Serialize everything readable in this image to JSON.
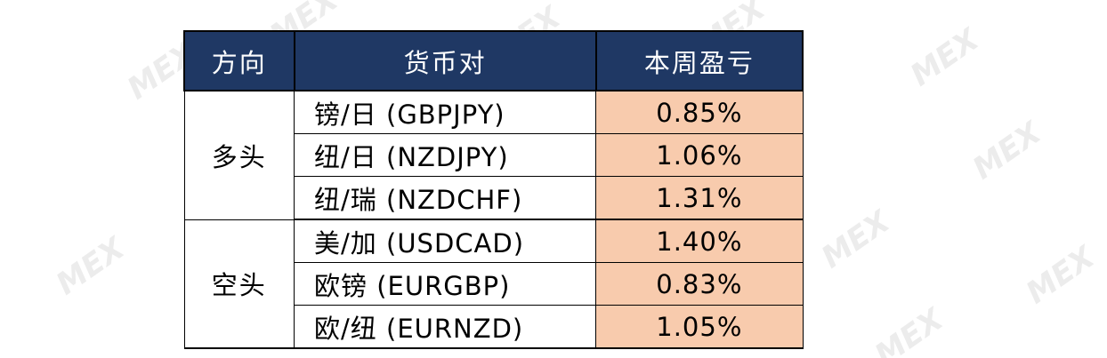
{
  "table": {
    "headers": [
      "方向",
      "货币对",
      "本周盈亏"
    ],
    "groups": [
      {
        "direction": "多头",
        "rows": [
          {
            "pair": "镑/日 (GBPJPY)",
            "pnl": "0.85%"
          },
          {
            "pair": "纽/日 (NZDJPY)",
            "pnl": "1.06%"
          },
          {
            "pair": "纽/瑞 (NZDCHF)",
            "pnl": "1.31%"
          }
        ]
      },
      {
        "direction": "空头",
        "rows": [
          {
            "pair": "美/加 (USDCAD)",
            "pnl": "1.40%"
          },
          {
            "pair": "欧镑 (EURGBP)",
            "pnl": "0.83%"
          },
          {
            "pair": "欧/纽 (EURNZD)",
            "pnl": "1.05%"
          }
        ]
      }
    ]
  },
  "watermark": {
    "text": "MEX"
  },
  "colors": {
    "header_bg": "#1f3864",
    "header_text": "#ffffff",
    "pnl_bg": "#f8cbad",
    "border": "#000000"
  }
}
